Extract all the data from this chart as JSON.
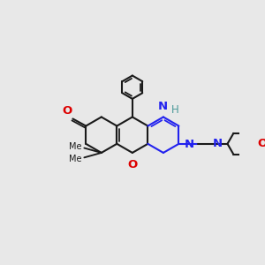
{
  "bg": "#E8E8E8",
  "bc": "#1a1a1a",
  "Nc": "#2222EE",
  "Oc": "#DD0000",
  "Hc": "#4A9999",
  "lw": 1.5,
  "lw_thin": 1.2,
  "fs": 8.5,
  "figsize": [
    3.0,
    3.0
  ],
  "dpi": 100,
  "xl": [
    0,
    10
  ],
  "yl": [
    0,
    10
  ],
  "bl": 0.75
}
